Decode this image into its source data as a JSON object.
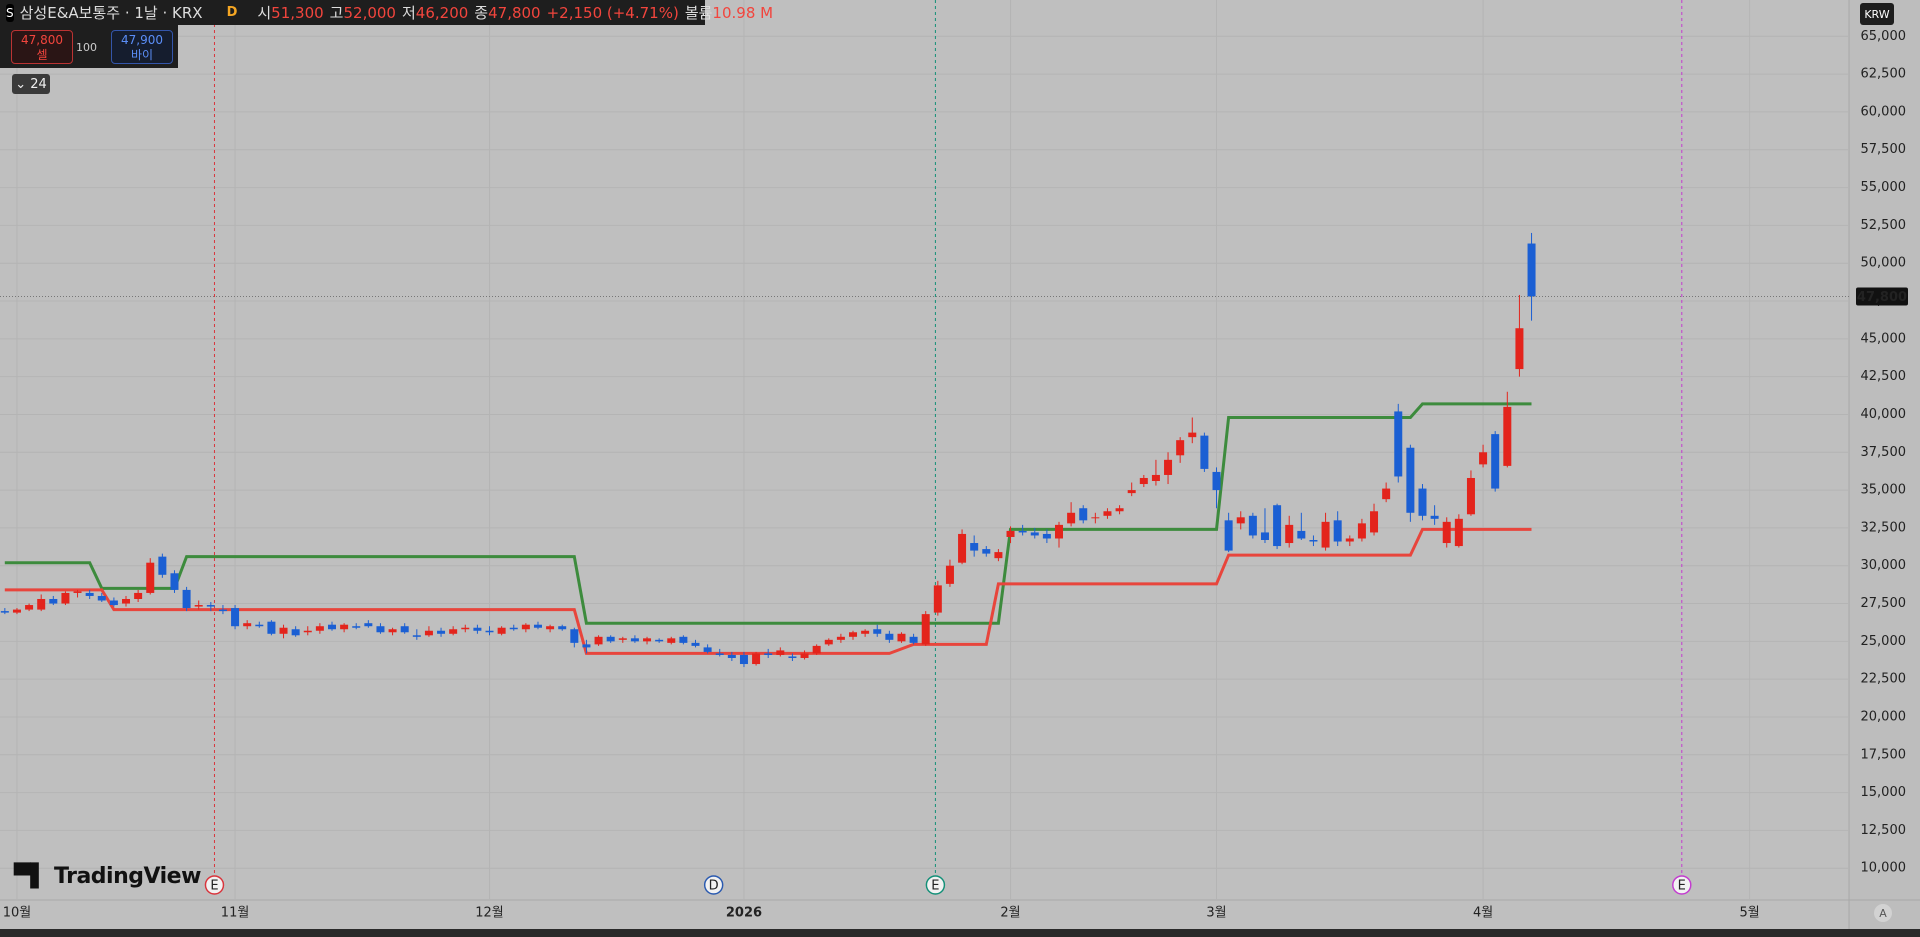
{
  "header": {
    "logo": "S",
    "symbol": "삼성E&A보통주 · 1날 · KRX",
    "flag": "D",
    "ohlc": [
      {
        "label": "시",
        "value": "51,300"
      },
      {
        "label": "고",
        "value": "52,000"
      },
      {
        "label": "저",
        "value": "46,200"
      },
      {
        "label": "종",
        "value": "47,800"
      }
    ],
    "change": "+2,150 (+4.71%)",
    "volume_label": "볼륨",
    "volume": "10.98 M"
  },
  "trade": {
    "sell_price": "47,800",
    "sell_label": "셀",
    "qty": "100",
    "buy_price": "47,900",
    "buy_label": "바이"
  },
  "indicators_count": "24",
  "currency": "KRW",
  "brand": "TradingView",
  "auto": "A",
  "chart_data": {
    "type": "candlestick",
    "up_color": "#e3241c",
    "down_color": "#1b5fd3",
    "candles": [
      [
        27000,
        27200,
        26800,
        26900
      ],
      [
        26900,
        27200,
        26800,
        27100
      ],
      [
        27100,
        27500,
        27000,
        27400
      ],
      [
        27100,
        28100,
        27000,
        27800
      ],
      [
        27800,
        28000,
        27400,
        27500
      ],
      [
        27500,
        28300,
        27400,
        28200
      ],
      [
        28200,
        28400,
        27900,
        28300
      ],
      [
        28200,
        28400,
        27800,
        28000
      ],
      [
        28000,
        28200,
        27600,
        27700
      ],
      [
        27700,
        27900,
        27300,
        27400
      ],
      [
        27500,
        28000,
        27300,
        27800
      ],
      [
        27800,
        28400,
        27600,
        28200
      ],
      [
        28200,
        30500,
        28100,
        30200
      ],
      [
        30600,
        30800,
        29200,
        29400
      ],
      [
        29500,
        29700,
        28200,
        28400
      ],
      [
        28400,
        28600,
        27000,
        27200
      ],
      [
        27300,
        27700,
        27100,
        27400
      ],
      [
        27400,
        27600,
        27000,
        27300
      ],
      [
        27100,
        27400,
        26800,
        27000
      ],
      [
        27200,
        27400,
        25800,
        26000
      ],
      [
        26000,
        26400,
        25800,
        26200
      ],
      [
        26100,
        26300,
        25900,
        26000
      ],
      [
        26300,
        26400,
        25400,
        25500
      ],
      [
        25500,
        26100,
        25200,
        25900
      ],
      [
        25800,
        26000,
        25300,
        25400
      ],
      [
        25600,
        26000,
        25400,
        25700
      ],
      [
        25700,
        26200,
        25500,
        26000
      ],
      [
        26100,
        26300,
        25700,
        25800
      ],
      [
        25800,
        26200,
        25600,
        26100
      ],
      [
        26000,
        26200,
        25800,
        25900
      ],
      [
        26200,
        26400,
        25900,
        26000
      ],
      [
        26000,
        26200,
        25500,
        25600
      ],
      [
        25600,
        25900,
        25400,
        25800
      ],
      [
        26000,
        26200,
        25500,
        25600
      ],
      [
        25400,
        25800,
        25100,
        25300
      ],
      [
        25400,
        26000,
        25300,
        25700
      ],
      [
        25700,
        25900,
        25300,
        25500
      ],
      [
        25500,
        26000,
        25400,
        25800
      ],
      [
        25800,
        26100,
        25600,
        25900
      ],
      [
        25900,
        26100,
        25500,
        25700
      ],
      [
        25700,
        26000,
        25400,
        25600
      ],
      [
        25500,
        26000,
        25400,
        25900
      ],
      [
        25900,
        26100,
        25700,
        25800
      ],
      [
        25800,
        26200,
        25600,
        26100
      ],
      [
        26100,
        26300,
        25800,
        25900
      ],
      [
        25800,
        26100,
        25600,
        26000
      ],
      [
        26000,
        26100,
        25700,
        25800
      ],
      [
        25800,
        25900,
        24600,
        24900
      ],
      [
        24800,
        25100,
        24200,
        24600
      ],
      [
        24800,
        25400,
        24700,
        25300
      ],
      [
        25300,
        25400,
        24900,
        25000
      ],
      [
        25100,
        25300,
        24900,
        25200
      ],
      [
        25200,
        25400,
        24900,
        25000
      ],
      [
        25000,
        25300,
        24800,
        25200
      ],
      [
        25100,
        25200,
        24900,
        25000
      ],
      [
        24900,
        25300,
        24800,
        25200
      ],
      [
        25300,
        25400,
        24800,
        24900
      ],
      [
        24900,
        25100,
        24600,
        24700
      ],
      [
        24600,
        24800,
        24200,
        24300
      ],
      [
        24200,
        24500,
        24000,
        24100
      ],
      [
        24100,
        24300,
        23700,
        23900
      ],
      [
        24100,
        24300,
        23300,
        23500
      ],
      [
        23500,
        24300,
        23400,
        24200
      ],
      [
        24200,
        24500,
        23900,
        24100
      ],
      [
        24100,
        24600,
        24000,
        24400
      ],
      [
        24000,
        24200,
        23700,
        23900
      ],
      [
        23900,
        24400,
        23800,
        24200
      ],
      [
        24200,
        24800,
        24100,
        24700
      ],
      [
        24800,
        25200,
        24700,
        25100
      ],
      [
        25100,
        25500,
        24900,
        25300
      ],
      [
        25300,
        25700,
        25100,
        25600
      ],
      [
        25500,
        25800,
        25300,
        25700
      ],
      [
        25800,
        26100,
        25300,
        25500
      ],
      [
        25500,
        25700,
        24900,
        25100
      ],
      [
        25000,
        25600,
        24900,
        25500
      ],
      [
        25300,
        25500,
        24800,
        24900
      ],
      [
        24800,
        27000,
        24700,
        26800
      ],
      [
        26900,
        29000,
        26700,
        28700
      ],
      [
        28800,
        30400,
        28600,
        30000
      ],
      [
        30200,
        32400,
        30100,
        32100
      ],
      [
        31500,
        32000,
        30600,
        31000
      ],
      [
        31100,
        31300,
        30600,
        30800
      ],
      [
        30500,
        31100,
        30300,
        30900
      ],
      [
        31900,
        32600,
        31500,
        32300
      ],
      [
        32300,
        32700,
        32000,
        32200
      ],
      [
        32200,
        32500,
        31800,
        32000
      ],
      [
        32100,
        32400,
        31500,
        31800
      ],
      [
        31800,
        32900,
        31200,
        32700
      ],
      [
        32800,
        34200,
        32600,
        33500
      ],
      [
        33800,
        34000,
        32800,
        33000
      ],
      [
        33200,
        33500,
        32800,
        33200
      ],
      [
        33300,
        33800,
        33100,
        33600
      ],
      [
        33600,
        34000,
        33400,
        33800
      ],
      [
        34800,
        35500,
        34600,
        35000
      ],
      [
        35400,
        36000,
        35200,
        35800
      ],
      [
        35600,
        37000,
        35300,
        36000
      ],
      [
        36000,
        37500,
        35400,
        37000
      ],
      [
        37300,
        38500,
        36800,
        38300
      ],
      [
        38500,
        39800,
        38100,
        38800
      ],
      [
        38600,
        38800,
        36200,
        36400
      ],
      [
        36200,
        36500,
        33800,
        35000
      ],
      [
        33000,
        33500,
        30900,
        31000
      ],
      [
        32800,
        33600,
        32400,
        33200
      ],
      [
        33300,
        33500,
        31800,
        32000
      ],
      [
        32200,
        33800,
        31500,
        31700
      ],
      [
        34000,
        34100,
        31100,
        31300
      ],
      [
        31500,
        33300,
        31200,
        32700
      ],
      [
        32300,
        33500,
        31700,
        31800
      ],
      [
        31700,
        32000,
        31300,
        31600
      ],
      [
        31200,
        33500,
        31000,
        32900
      ],
      [
        33000,
        33600,
        31300,
        31600
      ],
      [
        31600,
        32000,
        31300,
        31800
      ],
      [
        31800,
        33100,
        31600,
        32800
      ],
      [
        32200,
        34100,
        32000,
        33600
      ],
      [
        34400,
        35500,
        34200,
        35100
      ],
      [
        40200,
        40700,
        35500,
        35900
      ],
      [
        37800,
        38000,
        32900,
        33500
      ],
      [
        35100,
        35400,
        33000,
        33300
      ],
      [
        33300,
        34000,
        32700,
        33100
      ],
      [
        31500,
        33200,
        31200,
        32900
      ],
      [
        31300,
        33400,
        31200,
        33100
      ],
      [
        33400,
        36300,
        33300,
        35800
      ],
      [
        36700,
        38000,
        36500,
        37500
      ],
      [
        38700,
        38900,
        34900,
        35100
      ],
      [
        36600,
        41500,
        36500,
        40500
      ],
      [
        43000,
        47900,
        42500,
        45700
      ],
      [
        51300,
        52000,
        46200,
        47800
      ]
    ],
    "series": [
      {
        "color": "#3d8b3d",
        "x": [
          0,
          7,
          8,
          14,
          15,
          47,
          48,
          82,
          83,
          100,
          101,
          116,
          117,
          126
        ],
        "values": [
          30200,
          30200,
          28500,
          28500,
          30600,
          30600,
          26200,
          26200,
          32400,
          32400,
          39800,
          39800,
          40700,
          40700
        ]
      },
      {
        "color": "#e8453c",
        "x": [
          0,
          8,
          9,
          47,
          48,
          73,
          75,
          81,
          82,
          100,
          101,
          116,
          117,
          126
        ],
        "values": [
          28400,
          28400,
          27100,
          27100,
          24200,
          24200,
          24800,
          24800,
          28800,
          28800,
          30700,
          30700,
          32400,
          32400
        ]
      }
    ],
    "xlim": [
      -0.4,
      152.2
    ],
    "ylim": [
      7900,
      67400
    ],
    "xticks": [
      {
        "value": 1,
        "label": "10월"
      },
      {
        "value": 19,
        "label": "11월"
      },
      {
        "value": 40,
        "label": "12월"
      },
      {
        "value": 61,
        "label": "2026"
      },
      {
        "value": 83,
        "label": "2월"
      },
      {
        "value": 100,
        "label": "3월"
      },
      {
        "value": 122,
        "label": "4월"
      },
      {
        "value": 144,
        "label": "5월"
      }
    ],
    "yticks": [
      {
        "value": 10000,
        "label": "10,000"
      },
      {
        "value": 12500,
        "label": "12,500"
      },
      {
        "value": 15000,
        "label": "15,000"
      },
      {
        "value": 17500,
        "label": "17,500"
      },
      {
        "value": 20000,
        "label": "20,000"
      },
      {
        "value": 22500,
        "label": "22,500"
      },
      {
        "value": 25000,
        "label": "25,000"
      },
      {
        "value": 27500,
        "label": "27,500"
      },
      {
        "value": 30000,
        "label": "30,000"
      },
      {
        "value": 32500,
        "label": "32,500"
      },
      {
        "value": 35000,
        "label": "35,000"
      },
      {
        "value": 37500,
        "label": "37,500"
      },
      {
        "value": 40000,
        "label": "40,000"
      },
      {
        "value": 42500,
        "label": "42,500"
      },
      {
        "value": 45000,
        "label": "45,000"
      },
      {
        "value": 47500,
        "label": "47,500"
      },
      {
        "value": 50000,
        "label": "50,000"
      },
      {
        "value": 52500,
        "label": "52,500"
      },
      {
        "value": 55000,
        "label": "55,000"
      },
      {
        "value": 57500,
        "label": "57,500"
      },
      {
        "value": 60000,
        "label": "60,000"
      },
      {
        "value": 62500,
        "label": "62,500"
      },
      {
        "value": 65000,
        "label": "65,000"
      }
    ],
    "last_price": {
      "value": 47800,
      "label": "47,800"
    },
    "events": [
      {
        "x": 17.3,
        "label": "E",
        "color": "#d9343c",
        "line": true
      },
      {
        "x": 58.5,
        "label": "D",
        "color": "#2a5ab0",
        "line": false
      },
      {
        "x": 76.8,
        "label": "E",
        "color": "#139078",
        "line": true
      },
      {
        "x": 138.4,
        "label": "E",
        "color": "#c33ccf",
        "line": true
      }
    ],
    "grid": true
  }
}
